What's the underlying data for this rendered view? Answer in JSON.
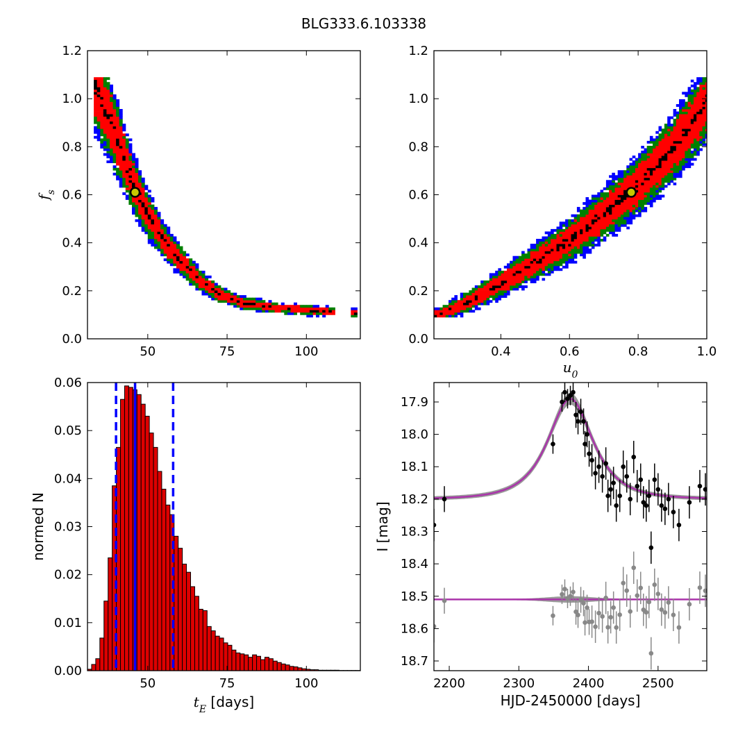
{
  "figure": {
    "title": "BLG333.6.103338"
  },
  "colors": {
    "sigma3": "#0000ff",
    "sigma2": "#008000",
    "sigma1": "#ff0000",
    "best": "#000000",
    "marker_fill": "#c8c800",
    "hist_bar": "#dd0000",
    "model": "#aa33aa",
    "envelope": "#888888",
    "data": "#000000",
    "residual": "#888888",
    "quantile_line": "#0000ff"
  },
  "chart_data": [
    {
      "type": "heatmap",
      "name": "fs-vs-tE",
      "xlabel": "",
      "ylabel": "f_s",
      "xlim": [
        31,
        117
      ],
      "ylim": [
        0,
        1.2
      ],
      "xticks": [
        "50",
        "75",
        "100"
      ],
      "xtick_values": [
        50,
        75,
        100
      ],
      "yticks": [
        "0.0",
        "0.2",
        "0.4",
        "0.6",
        "0.8",
        "1.0",
        "1.2"
      ],
      "ytick_values": [
        0,
        0.2,
        0.4,
        0.6,
        0.8,
        1.0,
        1.2
      ],
      "grid": false,
      "levels": [
        "1-sigma (red)",
        "2-sigma (green)",
        "3-sigma (blue)",
        "best (black)"
      ],
      "ridge": {
        "x": [
          33.5,
          40,
          45,
          50,
          55,
          60,
          66,
          72,
          80,
          90,
          100,
          106
        ],
        "y": [
          1.05,
          0.85,
          0.66,
          0.52,
          0.41,
          0.33,
          0.25,
          0.19,
          0.15,
          0.13,
          0.12,
          0.115
        ]
      },
      "best_fit": {
        "x": 46,
        "y": 0.61
      }
    },
    {
      "type": "heatmap",
      "name": "fs-vs-u0",
      "xlabel": "u_0",
      "ylabel": "",
      "xlim": [
        0.205,
        1.0
      ],
      "ylim": [
        0,
        1.2
      ],
      "xticks": [
        "0.4",
        "0.6",
        "0.8",
        "1.0"
      ],
      "xtick_values": [
        0.4,
        0.6,
        0.8,
        1.0
      ],
      "yticks": [
        "0.0",
        "0.2",
        "0.4",
        "0.6",
        "0.8",
        "1.0",
        "1.2"
      ],
      "ytick_values": [
        0,
        0.2,
        0.4,
        0.6,
        0.8,
        1.0,
        1.2
      ],
      "grid": false,
      "ridge": {
        "x": [
          0.215,
          0.3,
          0.4,
          0.5,
          0.6,
          0.7,
          0.8,
          0.9,
          0.99
        ],
        "y": [
          0.1,
          0.15,
          0.23,
          0.32,
          0.41,
          0.52,
          0.64,
          0.79,
          0.96
        ]
      },
      "best_fit": {
        "x": 0.78,
        "y": 0.61
      }
    },
    {
      "type": "bar",
      "name": "tE-histogram",
      "xlabel": "t_E  [days]",
      "ylabel": "normed N",
      "xlim": [
        31,
        117
      ],
      "ylim": [
        0,
        0.06
      ],
      "xticks": [
        "50",
        "75",
        "100"
      ],
      "xtick_values": [
        50,
        75,
        100
      ],
      "yticks": [
        "0.00",
        "0.01",
        "0.02",
        "0.03",
        "0.04",
        "0.05",
        "0.06"
      ],
      "ytick_values": [
        0,
        0.01,
        0.02,
        0.03,
        0.04,
        0.05,
        0.06
      ],
      "bin_start": 31,
      "bin_width": 1.3,
      "values": [
        0.0003,
        0.0013,
        0.0025,
        0.0068,
        0.0145,
        0.0235,
        0.0385,
        0.0465,
        0.0565,
        0.0593,
        0.059,
        0.0585,
        0.0575,
        0.0555,
        0.053,
        0.0495,
        0.0465,
        0.0415,
        0.0378,
        0.0345,
        0.0325,
        0.028,
        0.0255,
        0.0222,
        0.0205,
        0.0175,
        0.0155,
        0.0128,
        0.0125,
        0.0092,
        0.0083,
        0.0072,
        0.0068,
        0.0058,
        0.0053,
        0.0043,
        0.0037,
        0.0035,
        0.0033,
        0.0028,
        0.0033,
        0.003,
        0.0023,
        0.0028,
        0.0025,
        0.002,
        0.0017,
        0.0014,
        0.0012,
        0.0009,
        0.0008,
        0.0006,
        0.0004,
        0.0003,
        0.0002,
        0.0002,
        0.0001,
        0.0001,
        0.0001,
        0.0001,
        0.0001,
        5e-05,
        5e-05,
        5e-05,
        5e-05,
        5e-05
      ],
      "median": 46,
      "quantiles": [
        40,
        58
      ]
    },
    {
      "type": "scatter",
      "name": "lightcurve",
      "xlabel": "HJD-2450000 [days]",
      "ylabel": "I [mag]",
      "xlim": [
        2178,
        2570
      ],
      "ylim": [
        18.73,
        17.84
      ],
      "y_inverted": true,
      "xticks": [
        "2200",
        "2300",
        "2400",
        "2500"
      ],
      "xtick_values": [
        2200,
        2300,
        2400,
        2500
      ],
      "yticks": [
        "17.9",
        "18.0",
        "18.1",
        "18.2",
        "18.3",
        "18.4",
        "18.5",
        "18.6",
        "18.7"
      ],
      "ytick_values": [
        17.9,
        18.0,
        18.1,
        18.2,
        18.3,
        18.4,
        18.5,
        18.6,
        18.7
      ],
      "model": {
        "baseline": 18.2,
        "peak_mag": 17.89,
        "t0": 2374,
        "tE": 46,
        "u0": 0.78
      },
      "residual_baseline": 18.51,
      "series": [
        {
          "x": [
            2178,
            2193,
            2349,
            2362,
            2366,
            2370,
            2374,
            2378,
            2382,
            2385,
            2389,
            2393,
            2395,
            2398,
            2401,
            2405,
            2410,
            2415,
            2420,
            2425,
            2428,
            2432,
            2436,
            2440,
            2445,
            2450,
            2455,
            2460,
            2465,
            2470,
            2475,
            2479,
            2483,
            2487,
            2490,
            2495,
            2500,
            2505,
            2510,
            2515,
            2522,
            2530,
            2545,
            2560,
            2568
          ],
          "y": [
            18.28,
            18.2,
            18.03,
            17.9,
            17.87,
            17.89,
            17.88,
            17.87,
            17.94,
            17.96,
            17.93,
            17.96,
            18.03,
            18.0,
            18.06,
            18.08,
            18.12,
            18.1,
            18.13,
            18.09,
            18.19,
            18.17,
            18.15,
            18.22,
            18.19,
            18.1,
            18.13,
            18.2,
            18.07,
            18.16,
            18.14,
            18.21,
            18.22,
            18.19,
            18.35,
            18.14,
            18.17,
            18.22,
            18.23,
            18.2,
            18.24,
            18.28,
            18.21,
            18.16,
            18.17
          ],
          "err": [
            0.05,
            0.04,
            0.03,
            0.03,
            0.03,
            0.03,
            0.03,
            0.03,
            0.04,
            0.04,
            0.04,
            0.04,
            0.04,
            0.04,
            0.04,
            0.05,
            0.05,
            0.05,
            0.05,
            0.05,
            0.05,
            0.05,
            0.05,
            0.05,
            0.05,
            0.05,
            0.05,
            0.05,
            0.05,
            0.05,
            0.05,
            0.05,
            0.05,
            0.05,
            0.05,
            0.05,
            0.05,
            0.05,
            0.05,
            0.05,
            0.05,
            0.05,
            0.05,
            0.05,
            0.05
          ]
        }
      ]
    }
  ]
}
